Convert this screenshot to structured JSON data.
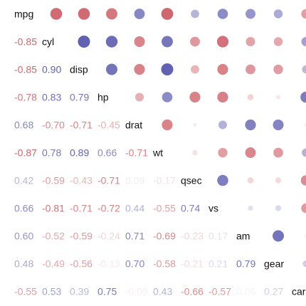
{
  "chart_data": {
    "type": "heatmap",
    "variables": [
      "mpg",
      "cyl",
      "disp",
      "hp",
      "drat",
      "wt",
      "qsec",
      "vs",
      "am",
      "gear",
      "carb"
    ],
    "correlation_matrix": [
      [
        1.0,
        -0.85,
        -0.85,
        -0.78,
        0.68,
        -0.87,
        0.42,
        0.66,
        0.6,
        0.48,
        -0.55
      ],
      [
        -0.85,
        1.0,
        0.9,
        0.83,
        -0.7,
        0.78,
        -0.59,
        -0.81,
        -0.52,
        -0.49,
        0.53
      ],
      [
        -0.85,
        0.9,
        1.0,
        0.79,
        -0.71,
        0.89,
        -0.43,
        -0.71,
        -0.59,
        -0.56,
        0.39
      ],
      [
        -0.78,
        0.83,
        0.79,
        1.0,
        -0.45,
        0.66,
        -0.71,
        -0.72,
        -0.24,
        -0.13,
        0.75
      ],
      [
        0.68,
        -0.7,
        -0.71,
        -0.45,
        1.0,
        -0.71,
        0.09,
        0.44,
        0.71,
        0.7,
        -0.09
      ],
      [
        -0.87,
        0.78,
        0.89,
        0.66,
        -0.71,
        1.0,
        -0.17,
        -0.55,
        -0.69,
        -0.58,
        0.43
      ],
      [
        0.42,
        -0.59,
        -0.43,
        -0.71,
        0.09,
        -0.17,
        1.0,
        0.74,
        -0.23,
        -0.21,
        -0.66
      ],
      [
        0.66,
        -0.81,
        -0.71,
        -0.72,
        0.44,
        -0.55,
        0.74,
        1.0,
        0.17,
        0.21,
        -0.57
      ],
      [
        0.6,
        -0.52,
        -0.59,
        -0.24,
        0.71,
        -0.69,
        -0.23,
        0.17,
        1.0,
        0.79,
        0.06
      ],
      [
        0.48,
        -0.49,
        -0.56,
        -0.13,
        0.7,
        -0.58,
        -0.21,
        0.21,
        0.79,
        1.0,
        0.27
      ],
      [
        -0.55,
        0.53,
        0.39,
        0.75,
        -0.09,
        0.43,
        -0.66,
        -0.57,
        0.06,
        0.27,
        1.0
      ]
    ],
    "lower_triangle": "numbers",
    "upper_triangle": "circles",
    "diagonal": "variable names",
    "colors": {
      "positive": "#4f4fa8",
      "negative": "#c8505a",
      "neutral": "#ffffff"
    }
  }
}
